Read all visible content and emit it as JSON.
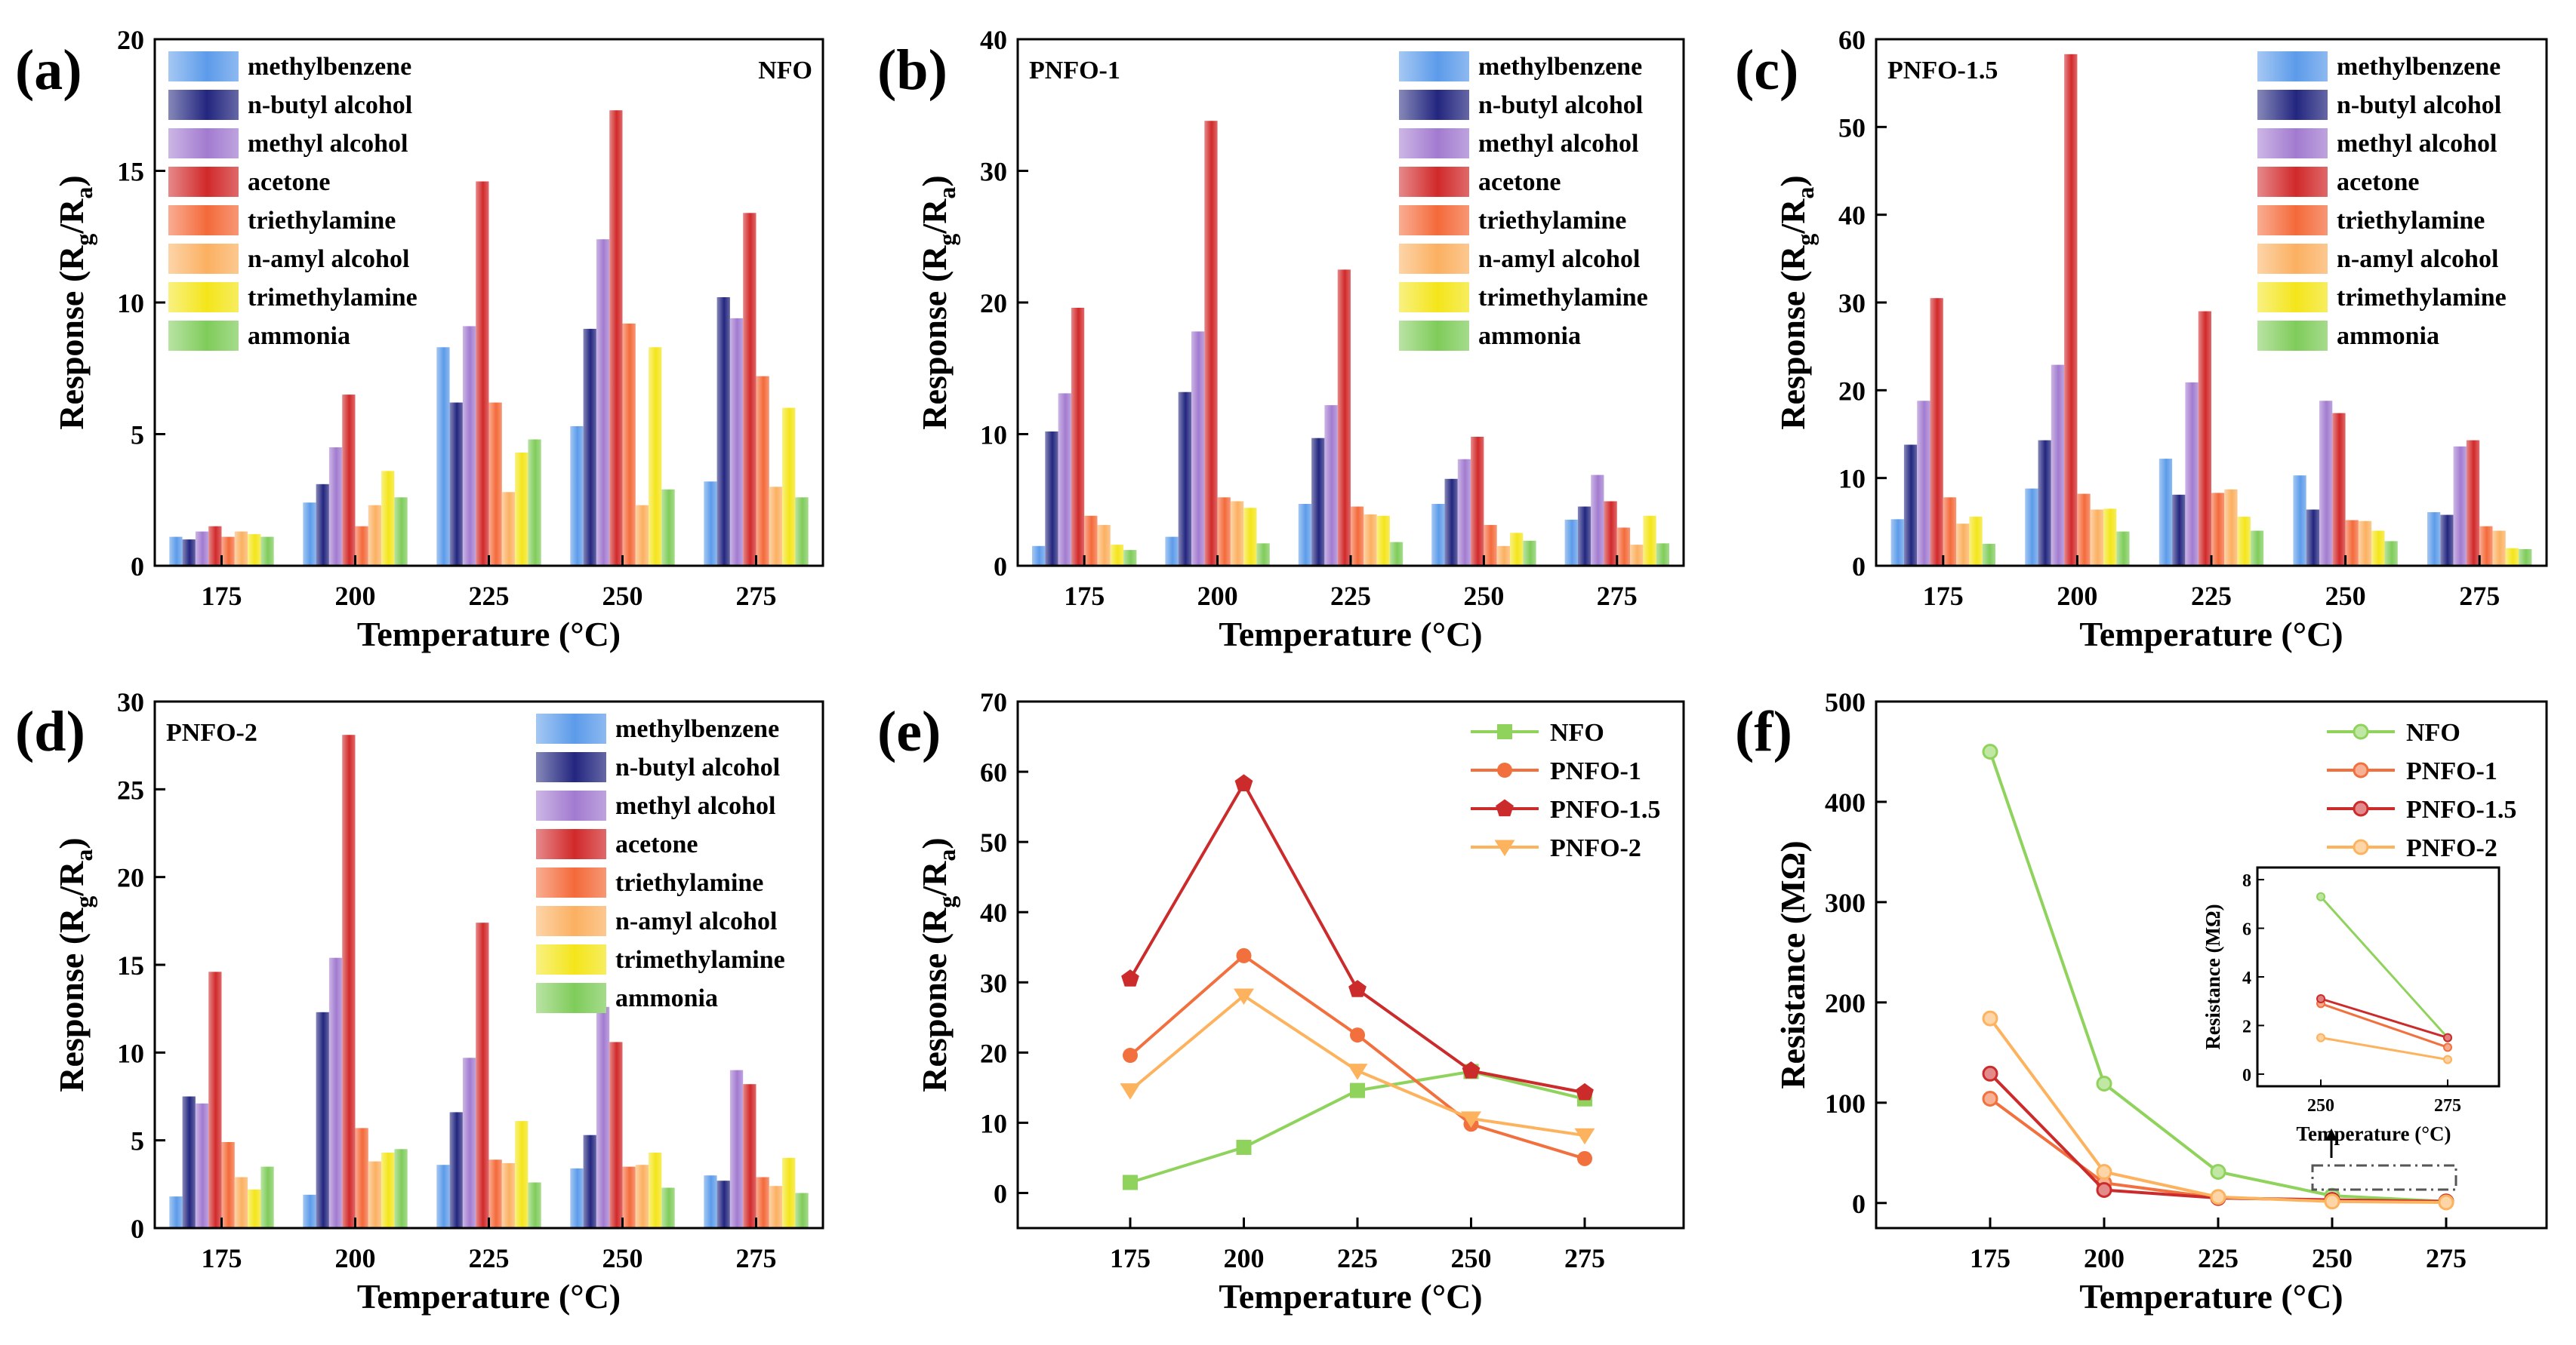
{
  "figure_label": "Gas sensing response and resistance figure",
  "colors": {
    "methylbenzene": "#5c9bea",
    "n-butyl alcohol": "#23267f",
    "methyl alcohol": "#a27bd0",
    "acetone": "#d1292a",
    "triethylamine": "#f46a3a",
    "n-amyl alcohol": "#fbb061",
    "trimethylamine": "#f4e51a",
    "ammonia": "#7fcc5a",
    "NFO": "#8fd35c",
    "PNFO-1": "#f2703d",
    "PNFO-1.5": "#cc2b2b",
    "PNFO-2": "#fdb35e"
  },
  "chart_data": [
    {
      "panel": "(a)",
      "tag": "NFO",
      "type": "bar",
      "categories": [
        "175",
        "200",
        "225",
        "250",
        "275"
      ],
      "xlabel": "Temperature (°C)",
      "ylabel": "Response (R",
      "ylabel_sub1": "g",
      "ylabel_mid": "/R",
      "ylabel_sub2": "a",
      "ylabel_end": ")",
      "ylim": [
        0,
        20
      ],
      "yticks": [
        "0",
        "5",
        "10",
        "15",
        "20"
      ],
      "series": [
        {
          "name": "methylbenzene",
          "values": [
            1.1,
            2.4,
            8.3,
            5.3,
            3.2
          ]
        },
        {
          "name": "n-butyl alcohol",
          "values": [
            1.0,
            3.1,
            6.2,
            9.0,
            10.2
          ]
        },
        {
          "name": "methyl alcohol",
          "values": [
            1.3,
            4.5,
            9.1,
            12.4,
            9.4
          ]
        },
        {
          "name": "acetone",
          "values": [
            1.5,
            6.5,
            14.6,
            17.3,
            13.4
          ]
        },
        {
          "name": "triethylamine",
          "values": [
            1.1,
            1.5,
            6.2,
            9.2,
            7.2
          ]
        },
        {
          "name": "n-amyl alcohol",
          "values": [
            1.3,
            2.3,
            2.8,
            2.3,
            3.0
          ]
        },
        {
          "name": "trimethylamine",
          "values": [
            1.2,
            3.6,
            4.3,
            8.3,
            6.0
          ]
        },
        {
          "name": "ammonia",
          "values": [
            1.1,
            2.6,
            4.8,
            2.9,
            2.6
          ]
        }
      ]
    },
    {
      "panel": "(b)",
      "tag": "PNFO-1",
      "type": "bar",
      "categories": [
        "175",
        "200",
        "225",
        "250",
        "275"
      ],
      "xlabel": "Temperature (°C)",
      "ylabel": "Response (R",
      "ylabel_sub1": "g",
      "ylabel_mid": "/R",
      "ylabel_sub2": "a",
      "ylabel_end": ")",
      "ylim": [
        0,
        40
      ],
      "yticks": [
        "0",
        "10",
        "20",
        "30",
        "40"
      ],
      "series": [
        {
          "name": "methylbenzene",
          "values": [
            1.5,
            2.2,
            4.7,
            4.7,
            3.5
          ]
        },
        {
          "name": "n-butyl alcohol",
          "values": [
            10.2,
            13.2,
            9.7,
            6.6,
            4.5
          ]
        },
        {
          "name": "methyl alcohol",
          "values": [
            13.1,
            17.8,
            12.2,
            8.1,
            6.9
          ]
        },
        {
          "name": "acetone",
          "values": [
            19.6,
            33.8,
            22.5,
            9.8,
            4.9
          ]
        },
        {
          "name": "triethylamine",
          "values": [
            3.8,
            5.2,
            4.5,
            3.1,
            2.9
          ]
        },
        {
          "name": "n-amyl alcohol",
          "values": [
            3.1,
            4.9,
            3.9,
            1.5,
            1.6
          ]
        },
        {
          "name": "trimethylamine",
          "values": [
            1.6,
            4.4,
            3.8,
            2.5,
            3.8
          ]
        },
        {
          "name": "ammonia",
          "values": [
            1.2,
            1.7,
            1.8,
            1.9,
            1.7
          ]
        }
      ]
    },
    {
      "panel": "(c)",
      "tag": "PNFO-1.5",
      "type": "bar",
      "categories": [
        "175",
        "200",
        "225",
        "250",
        "275"
      ],
      "xlabel": "Temperature (°C)",
      "ylabel": "Response (R",
      "ylabel_sub1": "g",
      "ylabel_mid": "/R",
      "ylabel_sub2": "a",
      "ylabel_end": ")",
      "ylim": [
        0,
        60
      ],
      "yticks": [
        "0",
        "10",
        "20",
        "30",
        "40",
        "50",
        "60"
      ],
      "series": [
        {
          "name": "methylbenzene",
          "values": [
            5.3,
            8.8,
            12.2,
            10.3,
            6.1
          ]
        },
        {
          "name": "n-butyl alcohol",
          "values": [
            13.8,
            14.3,
            8.1,
            6.4,
            5.8
          ]
        },
        {
          "name": "methyl alcohol",
          "values": [
            18.8,
            22.9,
            20.9,
            18.8,
            13.6
          ]
        },
        {
          "name": "acetone",
          "values": [
            30.5,
            58.3,
            29.0,
            17.4,
            14.3
          ]
        },
        {
          "name": "triethylamine",
          "values": [
            7.8,
            8.2,
            8.3,
            5.2,
            4.5
          ]
        },
        {
          "name": "n-amyl alcohol",
          "values": [
            4.8,
            6.4,
            8.7,
            5.1,
            4.0
          ]
        },
        {
          "name": "trimethylamine",
          "values": [
            5.6,
            6.5,
            5.6,
            4.0,
            2.0
          ]
        },
        {
          "name": "ammonia",
          "values": [
            2.5,
            3.9,
            4.0,
            2.8,
            1.9
          ]
        }
      ]
    },
    {
      "panel": "(d)",
      "tag": "PNFO-2",
      "type": "bar",
      "categories": [
        "175",
        "200",
        "225",
        "250",
        "275"
      ],
      "xlabel": "Temperature (°C)",
      "ylabel": "Response (R",
      "ylabel_sub1": "g",
      "ylabel_mid": "/R",
      "ylabel_sub2": "a",
      "ylabel_end": ")",
      "ylim": [
        0,
        30
      ],
      "yticks": [
        "0",
        "5",
        "10",
        "15",
        "20",
        "25",
        "30"
      ],
      "series": [
        {
          "name": "methylbenzene",
          "values": [
            1.8,
            1.9,
            3.6,
            3.4,
            3.0
          ]
        },
        {
          "name": "n-butyl alcohol",
          "values": [
            7.5,
            12.3,
            6.6,
            5.3,
            2.7
          ]
        },
        {
          "name": "methyl alcohol",
          "values": [
            7.1,
            15.4,
            9.7,
            12.6,
            9.0
          ]
        },
        {
          "name": "acetone",
          "values": [
            14.6,
            28.1,
            17.4,
            10.6,
            8.2
          ]
        },
        {
          "name": "triethylamine",
          "values": [
            4.9,
            5.7,
            3.9,
            3.5,
            2.9
          ]
        },
        {
          "name": "n-amyl alcohol",
          "values": [
            2.9,
            3.8,
            3.7,
            3.6,
            2.4
          ]
        },
        {
          "name": "trimethylamine",
          "values": [
            2.2,
            4.3,
            6.1,
            4.3,
            4.0
          ]
        },
        {
          "name": "ammonia",
          "values": [
            3.5,
            4.5,
            2.6,
            2.3,
            2.0
          ]
        }
      ]
    },
    {
      "panel": "(e)",
      "type": "line",
      "x": [
        "175",
        "200",
        "225",
        "250",
        "275"
      ],
      "xlabel": "Temperature (°C)",
      "ylabel": "Response (R",
      "ylabel_sub1": "g",
      "ylabel_mid": "/R",
      "ylabel_sub2": "a",
      "ylabel_end": ")",
      "ylim": [
        -5,
        70
      ],
      "yticks": [
        "0",
        "10",
        "20",
        "30",
        "40",
        "50",
        "60",
        "70"
      ],
      "series": [
        {
          "name": "NFO",
          "marker": "square",
          "values": [
            1.5,
            6.5,
            14.6,
            17.3,
            13.4
          ]
        },
        {
          "name": "PNFO-1",
          "marker": "circle",
          "values": [
            19.6,
            33.8,
            22.5,
            9.8,
            4.9
          ]
        },
        {
          "name": "PNFO-1.5",
          "marker": "pentagon",
          "values": [
            30.5,
            58.3,
            29.0,
            17.4,
            14.3
          ]
        },
        {
          "name": "PNFO-2",
          "marker": "triangle-down",
          "values": [
            14.6,
            28.1,
            17.4,
            10.6,
            8.2
          ]
        }
      ]
    },
    {
      "panel": "(f)",
      "type": "line",
      "x": [
        "175",
        "200",
        "225",
        "250",
        "275"
      ],
      "xlabel": "Temperature (°C)",
      "ylabel": "Resistance (MΩ)",
      "ylim": [
        -25,
        500
      ],
      "yticks": [
        "0",
        "100",
        "200",
        "300",
        "400",
        "500"
      ],
      "series": [
        {
          "name": "NFO",
          "values": [
            450,
            119,
            31,
            7.3,
            1.5
          ]
        },
        {
          "name": "PNFO-1",
          "values": [
            104,
            20,
            5,
            2.9,
            1.1
          ]
        },
        {
          "name": "PNFO-1.5",
          "values": [
            129,
            13,
            5,
            3.1,
            1.5
          ]
        },
        {
          "name": "PNFO-2",
          "values": [
            184,
            31,
            6,
            1.5,
            0.6
          ]
        }
      ],
      "inset": {
        "x": [
          "250",
          "275"
        ],
        "xlabel": "Temperature (°C)",
        "ylabel": "Resistance (MΩ)",
        "ylim": [
          -0.5,
          8.5
        ],
        "yticks": [
          "0",
          "2",
          "4",
          "6",
          "8"
        ],
        "series": [
          {
            "name": "NFO",
            "values": [
              7.3,
              1.5
            ]
          },
          {
            "name": "PNFO-1",
            "values": [
              2.9,
              1.1
            ]
          },
          {
            "name": "PNFO-1.5",
            "values": [
              3.1,
              1.5
            ]
          },
          {
            "name": "PNFO-2",
            "values": [
              1.5,
              0.6
            ]
          }
        ]
      }
    }
  ]
}
